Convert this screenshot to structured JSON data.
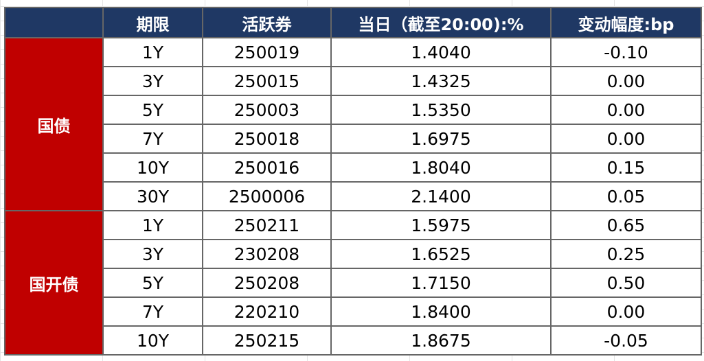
{
  "colors": {
    "header_bg": "#1f3864",
    "group_bg": "#c00000",
    "border": "#666666"
  },
  "headers": [
    "",
    "期限",
    "活跃券",
    "当日（截至20:00):%",
    "变动幅度:bp"
  ],
  "groups": [
    {
      "name": "国债",
      "rows": [
        [
          "1Y",
          "250019",
          "1.4040",
          "-0.10"
        ],
        [
          "3Y",
          "250015",
          "1.4325",
          "0.00"
        ],
        [
          "5Y",
          "250003",
          "1.5350",
          "0.00"
        ],
        [
          "7Y",
          "250018",
          "1.6975",
          "0.00"
        ],
        [
          "10Y",
          "250016",
          "1.8040",
          "0.15"
        ],
        [
          "30Y",
          "2500006",
          "2.1400",
          "0.05"
        ]
      ]
    },
    {
      "name": "国开债",
      "rows": [
        [
          "1Y",
          "250211",
          "1.5975",
          "0.65"
        ],
        [
          "3Y",
          "230208",
          "1.6525",
          "0.25"
        ],
        [
          "5Y",
          "250208",
          "1.7150",
          "0.50"
        ],
        [
          "7Y",
          "220210",
          "1.8400",
          "0.00"
        ],
        [
          "10Y",
          "250215",
          "1.8675",
          "-0.05"
        ]
      ]
    }
  ]
}
